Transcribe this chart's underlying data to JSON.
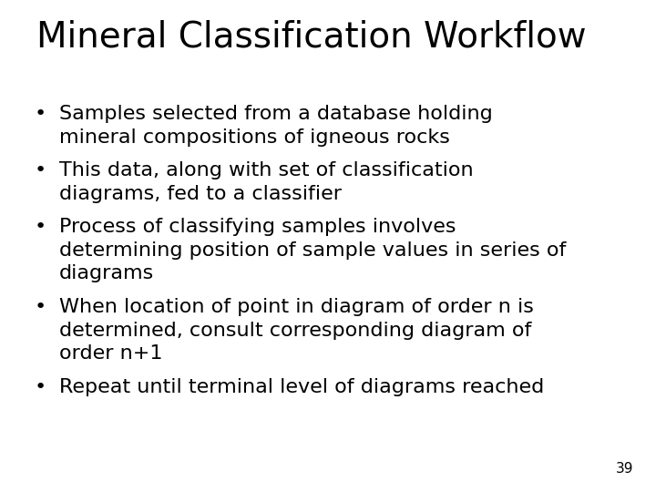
{
  "title": "Mineral Classification Workflow",
  "title_fontsize": 28,
  "title_fontweight": "normal",
  "background_color": "#ffffff",
  "text_color": "#000000",
  "bullet_points": [
    "Samples selected from a database holding\nmineral compositions of igneous rocks",
    "This data, along with set of classification\ndiagrams, fed to a classifier",
    "Process of classifying samples involves\ndetermining position of sample values in series of\ndiagrams",
    "When location of point in diagram of order n is\ndetermined, consult corresponding diagram of\norder n+1",
    "Repeat until terminal level of diagrams reached"
  ],
  "bullet_fontsize": 16,
  "line_heights": [
    2,
    2,
    3,
    3,
    1
  ],
  "page_number": "39",
  "page_number_fontsize": 11
}
